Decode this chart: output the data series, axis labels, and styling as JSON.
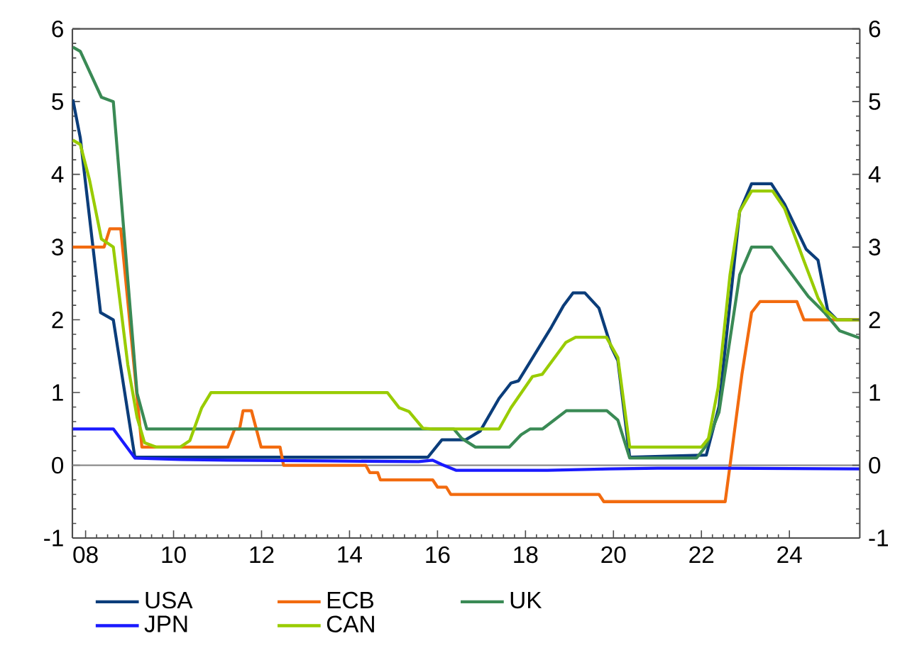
{
  "chart_data": {
    "type": "line",
    "xlim": [
      2007.7,
      2025.6
    ],
    "ylim": [
      -1,
      6
    ],
    "y2lim": [
      -1,
      6
    ],
    "xticks": [
      {
        "value": 2008,
        "label": "08"
      },
      {
        "value": 2010,
        "label": "10"
      },
      {
        "value": 2012,
        "label": "12"
      },
      {
        "value": 2014,
        "label": "14"
      },
      {
        "value": 2016,
        "label": "16"
      },
      {
        "value": 2018,
        "label": "18"
      },
      {
        "value": 2020,
        "label": "20"
      },
      {
        "value": 2022,
        "label": "22"
      },
      {
        "value": 2024,
        "label": "24"
      }
    ],
    "yticks": [
      -1,
      0,
      1,
      2,
      3,
      4,
      5,
      6
    ],
    "y2ticks": [
      -1,
      0,
      1,
      2,
      3,
      4,
      5,
      6
    ],
    "legend": "bottom",
    "line_style": "solid",
    "ref_lines": [
      {
        "axis": "y",
        "value": 0,
        "color": "#808080"
      }
    ],
    "series": [
      {
        "name": "USA",
        "color": "#0b3d7a",
        "x": [
          2007.71,
          2007.88,
          2008.34,
          2008.63,
          2009.12,
          2015.78,
          2016.1,
          2016.64,
          2016.97,
          2017.4,
          2017.67,
          2017.84,
          2018.59,
          2018.86,
          2019.08,
          2019.35,
          2019.67,
          2019.94,
          2020.1,
          2020.37,
          2022.11,
          2022.4,
          2022.87,
          2023.14,
          2023.59,
          2023.89,
          2024.38,
          2024.65,
          2024.87,
          2025.08,
          2025.6
        ],
        "values": [
          5.03,
          4.5,
          2.1,
          2.0,
          0.11,
          0.11,
          0.35,
          0.35,
          0.47,
          0.92,
          1.13,
          1.16,
          1.9,
          2.19,
          2.37,
          2.37,
          2.16,
          1.64,
          1.44,
          0.11,
          0.14,
          0.81,
          3.49,
          3.87,
          3.87,
          3.59,
          2.97,
          2.82,
          2.13,
          2.0,
          2.0
        ]
      },
      {
        "name": "ECB",
        "color": "#f26b0f",
        "x": [
          2007.71,
          2008.42,
          2008.55,
          2008.8,
          2009.28,
          2011.23,
          2011.39,
          2011.5,
          2011.58,
          2011.77,
          2011.99,
          2012.42,
          2012.5,
          2014.37,
          2014.46,
          2014.64,
          2014.7,
          2015.89,
          2016.0,
          2016.2,
          2016.3,
          2019.67,
          2019.78,
          2022.54,
          2022.65,
          2022.92,
          2023.14,
          2023.33,
          2024.17,
          2024.33,
          2025.6
        ],
        "values": [
          3.0,
          3.0,
          3.25,
          3.25,
          0.25,
          0.25,
          0.5,
          0.5,
          0.75,
          0.75,
          0.25,
          0.25,
          0.0,
          0.0,
          -0.1,
          -0.1,
          -0.2,
          -0.2,
          -0.3,
          -0.3,
          -0.4,
          -0.4,
          -0.5,
          -0.5,
          0.0,
          1.25,
          2.1,
          2.25,
          2.25,
          2.0,
          2.0
        ]
      },
      {
        "name": "UK",
        "color": "#3a8a55",
        "x": [
          2007.71,
          2007.88,
          2008.36,
          2008.63,
          2009.17,
          2009.39,
          2016.37,
          2016.55,
          2016.86,
          2017.63,
          2017.9,
          2018.11,
          2018.39,
          2018.93,
          2019.85,
          2020.1,
          2020.37,
          2021.89,
          2022.11,
          2022.27,
          2022.4,
          2022.87,
          2023.14,
          2023.59,
          2023.95,
          2024.43,
          2024.81,
          2025.14,
          2025.6
        ],
        "values": [
          5.75,
          5.69,
          5.06,
          5.0,
          0.99,
          0.5,
          0.5,
          0.37,
          0.25,
          0.25,
          0.42,
          0.5,
          0.5,
          0.75,
          0.75,
          0.62,
          0.1,
          0.1,
          0.27,
          0.53,
          0.73,
          2.62,
          3.0,
          3.0,
          2.71,
          2.32,
          2.09,
          1.85,
          1.75
        ]
      },
      {
        "name": "JPN",
        "color": "#1a1aff",
        "x": [
          2007.71,
          2008.63,
          2009.12,
          2010.15,
          2011.23,
          2013.5,
          2015.57,
          2015.89,
          2016.1,
          2016.43,
          2018.5,
          2019.9,
          2021.0,
          2022.5,
          2025.6
        ],
        "values": [
          0.5,
          0.5,
          0.1,
          0.08,
          0.07,
          0.06,
          0.05,
          0.07,
          0.01,
          -0.07,
          -0.07,
          -0.05,
          -0.04,
          -0.04,
          -0.05
        ]
      },
      {
        "name": "CAN",
        "color": "#99cc00",
        "x": [
          2007.71,
          2007.88,
          2008.09,
          2008.36,
          2008.63,
          2008.96,
          2009.17,
          2009.34,
          2009.61,
          2010.15,
          2010.37,
          2010.64,
          2010.85,
          2014.86,
          2015.13,
          2015.35,
          2015.67,
          2015.89,
          2017.4,
          2017.67,
          2018.16,
          2018.38,
          2018.92,
          2019.14,
          2019.84,
          2020.1,
          2020.37,
          2022.0,
          2022.16,
          2022.38,
          2022.65,
          2022.87,
          2023.14,
          2023.62,
          2023.89,
          2024.33,
          2024.65,
          2024.81,
          2025.08,
          2025.6
        ],
        "values": [
          4.47,
          4.41,
          3.92,
          3.11,
          3.0,
          1.38,
          0.66,
          0.31,
          0.25,
          0.25,
          0.34,
          0.79,
          1.0,
          1.0,
          0.79,
          0.74,
          0.51,
          0.5,
          0.5,
          0.79,
          1.22,
          1.25,
          1.69,
          1.76,
          1.76,
          1.48,
          0.25,
          0.25,
          0.37,
          1.07,
          2.62,
          3.49,
          3.77,
          3.77,
          3.53,
          2.81,
          2.3,
          2.13,
          2.0,
          2.0
        ]
      }
    ]
  }
}
